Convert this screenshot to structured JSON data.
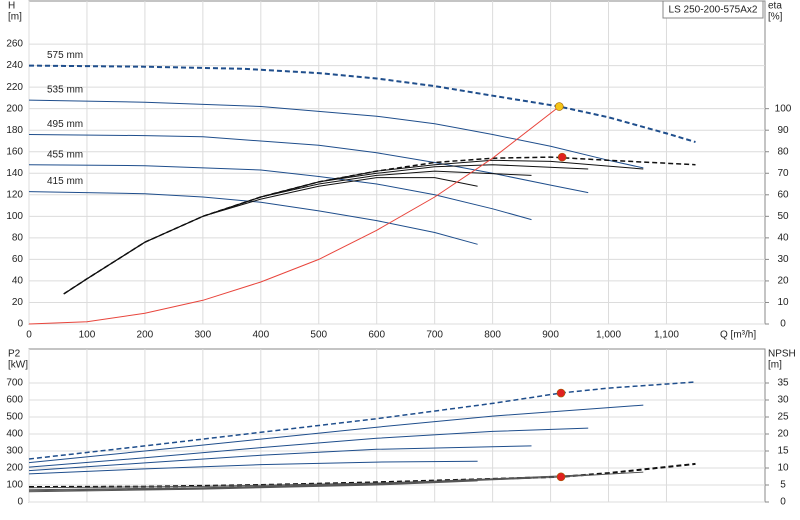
{
  "chart_data": [
    {
      "type": "line",
      "title": "LS 250-200-575Ax2",
      "x_label": "Q [m³/h]",
      "y_label": [
        "H",
        "[m]"
      ],
      "y2_label": [
        "eta",
        "[%]"
      ],
      "grid": true,
      "xlim": [
        0,
        1270
      ],
      "xticks": [
        0,
        100,
        200,
        300,
        400,
        500,
        600,
        700,
        800,
        900,
        {
          "value": 1000,
          "label": "1,000"
        },
        {
          "value": 1100,
          "label": "1,100"
        }
      ],
      "ylim": [
        0,
        300
      ],
      "yticks": [
        0,
        20,
        40,
        60,
        80,
        100,
        120,
        140,
        160,
        180,
        200,
        220,
        240,
        260
      ],
      "y2lim": [
        0,
        150
      ],
      "y2ticks": [
        0,
        10,
        20,
        30,
        40,
        50,
        60,
        70,
        80,
        90,
        100
      ],
      "series": [
        {
          "name": "575 mm",
          "color": "#1f4e8c",
          "dashed": true,
          "width": 2,
          "x": [
            0,
            200,
            370,
            500,
            600,
            700,
            800,
            915,
            1000,
            1100,
            1150
          ],
          "values": [
            240,
            239,
            237,
            233,
            228,
            221,
            212,
            202,
            192,
            177,
            169
          ]
        },
        {
          "name": "535 mm",
          "color": "#1f4e8c",
          "dashed": false,
          "width": 1,
          "x": [
            0,
            200,
            400,
            600,
            700,
            800,
            900,
            1000,
            1060
          ],
          "values": [
            208,
            206,
            202,
            193,
            186,
            176,
            165,
            152,
            145
          ]
        },
        {
          "name": "495 mm",
          "color": "#1f4e8c",
          "dashed": false,
          "width": 1,
          "x": [
            0,
            200,
            300,
            500,
            600,
            700,
            800,
            900,
            965
          ],
          "values": [
            176,
            175,
            174,
            166,
            159,
            150,
            140,
            129,
            122
          ]
        },
        {
          "name": "455 mm",
          "color": "#1f4e8c",
          "dashed": false,
          "width": 1,
          "x": [
            0,
            200,
            400,
            500,
            600,
            700,
            800,
            867
          ],
          "values": [
            148,
            147,
            143,
            137,
            130,
            120,
            107,
            97
          ]
        },
        {
          "name": "415 mm",
          "color": "#1f4e8c",
          "dashed": false,
          "width": 1,
          "x": [
            0,
            200,
            300,
            400,
            500,
            600,
            700,
            774
          ],
          "values": [
            123,
            121,
            118,
            113,
            105,
            96,
            85,
            74
          ]
        },
        {
          "color": "#111111",
          "axis": "y2",
          "dashed": true,
          "width": 1.5,
          "x": [
            60,
            100,
            200,
            300,
            400,
            500,
            600,
            700,
            800,
            900,
            1000,
            1150
          ],
          "values": [
            14,
            21,
            38,
            50,
            59,
            66,
            71,
            75,
            77,
            77.5,
            76,
            74
          ]
        },
        {
          "color": "#111111",
          "axis": "y2",
          "dashed": false,
          "width": 1,
          "x": [
            60,
            100,
            200,
            300,
            400,
            500,
            600,
            700,
            800,
            900,
            1060
          ],
          "values": [
            14,
            21,
            38,
            50,
            59,
            66,
            71,
            74,
            76,
            75.5,
            72
          ]
        },
        {
          "color": "#111111",
          "axis": "y2",
          "dashed": false,
          "width": 1,
          "x": [
            60,
            100,
            200,
            300,
            400,
            500,
            600,
            700,
            800,
            965
          ],
          "values": [
            14,
            21,
            38,
            50,
            59,
            66,
            70,
            73,
            74,
            72
          ]
        },
        {
          "color": "#111111",
          "axis": "y2",
          "dashed": false,
          "width": 1,
          "x": [
            60,
            100,
            200,
            300,
            400,
            500,
            600,
            700,
            867
          ],
          "values": [
            14,
            21,
            38,
            50,
            59,
            65,
            69,
            71,
            69
          ]
        },
        {
          "color": "#111111",
          "axis": "y2",
          "dashed": false,
          "width": 1,
          "x": [
            60,
            100,
            200,
            300,
            400,
            500,
            600,
            700,
            774
          ],
          "values": [
            14,
            21,
            38,
            50,
            58,
            64,
            68,
            68,
            64
          ]
        },
        {
          "color": "#e8453c",
          "dashed": false,
          "width": 1,
          "x": [
            0,
            100,
            200,
            300,
            400,
            500,
            600,
            700,
            800,
            915
          ],
          "values": [
            0,
            2,
            10,
            22,
            39,
            60,
            87,
            118,
            154,
            202
          ]
        }
      ],
      "points": [
        {
          "x": 915,
          "value": 202,
          "color": "#f5c518"
        },
        {
          "x": 920,
          "value": 77.5,
          "axis": "y2",
          "color": "#e02020"
        }
      ]
    },
    {
      "type": "line",
      "y_label": [
        "P2",
        "[kW]"
      ],
      "y2_label": [
        "NPSH",
        "[m]"
      ],
      "grid": true,
      "xlim": [
        0,
        1270
      ],
      "xticks": [
        0,
        100,
        200,
        300,
        400,
        500,
        600,
        700,
        800,
        900,
        1000,
        1100
      ],
      "ylim": [
        0,
        900
      ],
      "yticks": [
        0,
        100,
        200,
        300,
        400,
        500,
        600,
        700
      ],
      "y2lim": [
        0,
        45
      ],
      "y2ticks": [
        0,
        5,
        10,
        15,
        20,
        25,
        30,
        35
      ],
      "series": [
        {
          "color": "#1f4e8c",
          "dashed": true,
          "width": 1.5,
          "x": [
            0,
            200,
            400,
            600,
            800,
            918,
            1000,
            1150
          ],
          "values": [
            253,
            330,
            410,
            490,
            580,
            641,
            670,
            706
          ]
        },
        {
          "color": "#1f4e8c",
          "dashed": false,
          "width": 1,
          "x": [
            0,
            200,
            400,
            600,
            800,
            1060
          ],
          "values": [
            232,
            300,
            370,
            440,
            505,
            570
          ]
        },
        {
          "color": "#1f4e8c",
          "dashed": false,
          "width": 1,
          "x": [
            0,
            200,
            400,
            600,
            800,
            965
          ],
          "values": [
            205,
            260,
            320,
            375,
            415,
            435
          ]
        },
        {
          "color": "#1f4e8c",
          "dashed": false,
          "width": 1,
          "x": [
            0,
            200,
            400,
            600,
            867
          ],
          "values": [
            185,
            230,
            275,
            310,
            330
          ]
        },
        {
          "color": "#1f4e8c",
          "dashed": false,
          "width": 1,
          "x": [
            0,
            200,
            400,
            600,
            774
          ],
          "values": [
            165,
            195,
            220,
            235,
            240
          ]
        },
        {
          "color": "#111111",
          "axis": "y2",
          "dashed": true,
          "width": 2,
          "x": [
            0,
            200,
            400,
            600,
            800,
            918,
            1000,
            1150
          ],
          "values": [
            4.4,
            4.5,
            5,
            5.8,
            6.8,
            7.4,
            8.5,
            11.2
          ]
        },
        {
          "color": "#555555",
          "axis": "y2",
          "dashed": false,
          "width": 1,
          "x": [
            0,
            300,
            600,
            900,
            1060
          ],
          "values": [
            4.2,
            4.6,
            5.6,
            7.2,
            8.8
          ]
        },
        {
          "color": "#555555",
          "axis": "y2",
          "dashed": false,
          "width": 1,
          "x": [
            0,
            300,
            600,
            965
          ],
          "values": [
            3.6,
            4.2,
            5.4,
            8
          ]
        },
        {
          "color": "#555555",
          "axis": "y2",
          "dashed": false,
          "width": 1,
          "x": [
            0,
            300,
            600,
            867
          ],
          "values": [
            3.3,
            4,
            5.2,
            7
          ]
        },
        {
          "color": "#555555",
          "axis": "y2",
          "dashed": false,
          "width": 1,
          "x": [
            0,
            300,
            600,
            774
          ],
          "values": [
            3,
            3.8,
            5,
            6.2
          ]
        }
      ],
      "points": [
        {
          "x": 918,
          "value": 641,
          "color": "#e02020"
        },
        {
          "x": 918,
          "value": 7.4,
          "axis": "y2",
          "color": "#e02020"
        }
      ]
    }
  ]
}
